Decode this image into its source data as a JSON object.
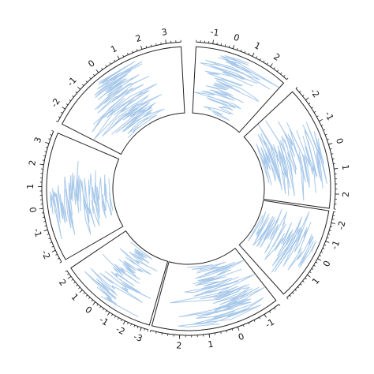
{
  "chart_data": {
    "type": "line",
    "layout": "circular",
    "grid": false,
    "line_color": "#a9c9ea",
    "frame_color": "#222222",
    "sectors": [
      {
        "id": "s1",
        "start_angle": 3,
        "end_angle": 42,
        "ylim": [
          -1.8,
          3.0
        ],
        "ticks": [
          -1,
          0,
          1,
          2
        ],
        "series": {
          "n": 110,
          "mean": 0.4,
          "sd": 0.95,
          "seed": 11
        }
      },
      {
        "id": "s2",
        "start_angle": 47,
        "end_angle": 98,
        "ylim": [
          -2.6,
          2.6
        ],
        "ticks": [
          -2,
          -1,
          0,
          1,
          2
        ],
        "series": {
          "n": 130,
          "mean": 0.0,
          "sd": 0.95,
          "seed": 23
        }
      },
      {
        "id": "s3",
        "start_angle": 99,
        "end_angle": 138,
        "ylim": [
          -2.6,
          2.6
        ],
        "ticks": [
          -2,
          -1,
          0,
          1
        ],
        "series": {
          "n": 110,
          "mean": -0.1,
          "sd": 0.95,
          "seed": 37
        }
      },
      {
        "id": "s4",
        "start_angle": 142,
        "end_angle": 195,
        "ylim": [
          -1.6,
          3.0
        ],
        "ticks": [
          -1,
          0,
          1,
          2
        ],
        "series": {
          "n": 130,
          "mean": 0.3,
          "sd": 0.9,
          "seed": 41
        }
      },
      {
        "id": "s5",
        "start_angle": 196,
        "end_angle": 236,
        "ylim": [
          -3.4,
          2.4
        ],
        "ticks": [
          -3,
          -2,
          -1,
          0,
          1,
          2
        ],
        "series": {
          "n": 110,
          "mean": -0.3,
          "sd": 1.0,
          "seed": 53
        }
      },
      {
        "id": "s6",
        "start_angle": 240,
        "end_angle": 293,
        "ylim": [
          -2.6,
          3.6
        ],
        "ticks": [
          -2,
          -1,
          0,
          1,
          2,
          3
        ],
        "series": {
          "n": 130,
          "mean": 0.0,
          "sd": 1.0,
          "seed": 67
        }
      },
      {
        "id": "s7",
        "start_angle": 297,
        "end_angle": 357,
        "ylim": [
          -2.6,
          3.6
        ],
        "ticks": [
          -2,
          -1,
          0,
          1,
          2,
          3
        ],
        "series": {
          "n": 140,
          "mean": 0.2,
          "sd": 0.95,
          "seed": 79
        }
      }
    ]
  }
}
